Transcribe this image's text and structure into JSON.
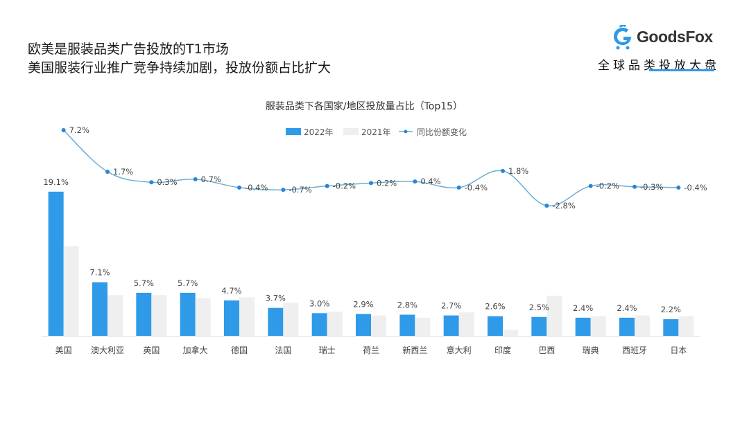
{
  "headline": [
    "欧美是服装品类广告投放的T1市场",
    "美国服装行业推广竞争持续加剧，投放份额占比扩大"
  ],
  "logo": {
    "brand": "GoodsFox",
    "tagline": "全球品类投放大盘",
    "icon": "goodsfox-logo-icon"
  },
  "colors": {
    "bar2022": "#2f9ae8",
    "bar2021": "#efefef",
    "line": "#6aaed6",
    "marker": "#2b83d6"
  },
  "chart_data": {
    "type": "bar",
    "title": "服装品类下各国家/地区投放量占比（Top15）",
    "categories": [
      "美国",
      "澳大利亚",
      "英国",
      "加拿大",
      "德国",
      "法国",
      "瑞士",
      "荷兰",
      "新西兰",
      "意大利",
      "印度",
      "巴西",
      "瑞典",
      "西班牙",
      "日本"
    ],
    "series": [
      {
        "name": "2022年",
        "type": "bar",
        "values": [
          19.1,
          7.1,
          5.7,
          5.7,
          4.7,
          3.7,
          3.0,
          2.9,
          2.8,
          2.7,
          2.6,
          2.5,
          2.4,
          2.4,
          2.2
        ],
        "labels": [
          "19.1%",
          "7.1%",
          "5.7%",
          "5.7%",
          "4.7%",
          "3.7%",
          "3.0%",
          "2.9%",
          "2.8%",
          "2.7%",
          "2.6%",
          "2.5%",
          "2.4%",
          "2.4%",
          "2.2%"
        ]
      },
      {
        "name": "2021年",
        "type": "bar",
        "values": [
          11.9,
          5.4,
          5.4,
          5.0,
          5.1,
          4.4,
          3.2,
          2.7,
          2.4,
          3.1,
          0.8,
          5.3,
          2.6,
          2.7,
          2.6
        ]
      },
      {
        "name": "同比份额变化",
        "type": "line",
        "smooth": true,
        "values": [
          7.2,
          1.7,
          0.3,
          0.7,
          -0.4,
          -0.7,
          -0.2,
          0.2,
          0.4,
          -0.4,
          1.8,
          -2.8,
          -0.2,
          -0.3,
          -0.4
        ],
        "labels": [
          "7.2%",
          "1.7%",
          "0.3%",
          "0.7%",
          "-0.4%",
          "-0.7%",
          "-0.2%",
          "0.2%",
          "0.4%",
          "-0.4%",
          "1.8%",
          "-2.8%",
          "-0.2%",
          "-0.3%",
          "-0.4%"
        ]
      }
    ],
    "legend_position": "top-center",
    "grid": false,
    "y_axis_visible": false
  }
}
